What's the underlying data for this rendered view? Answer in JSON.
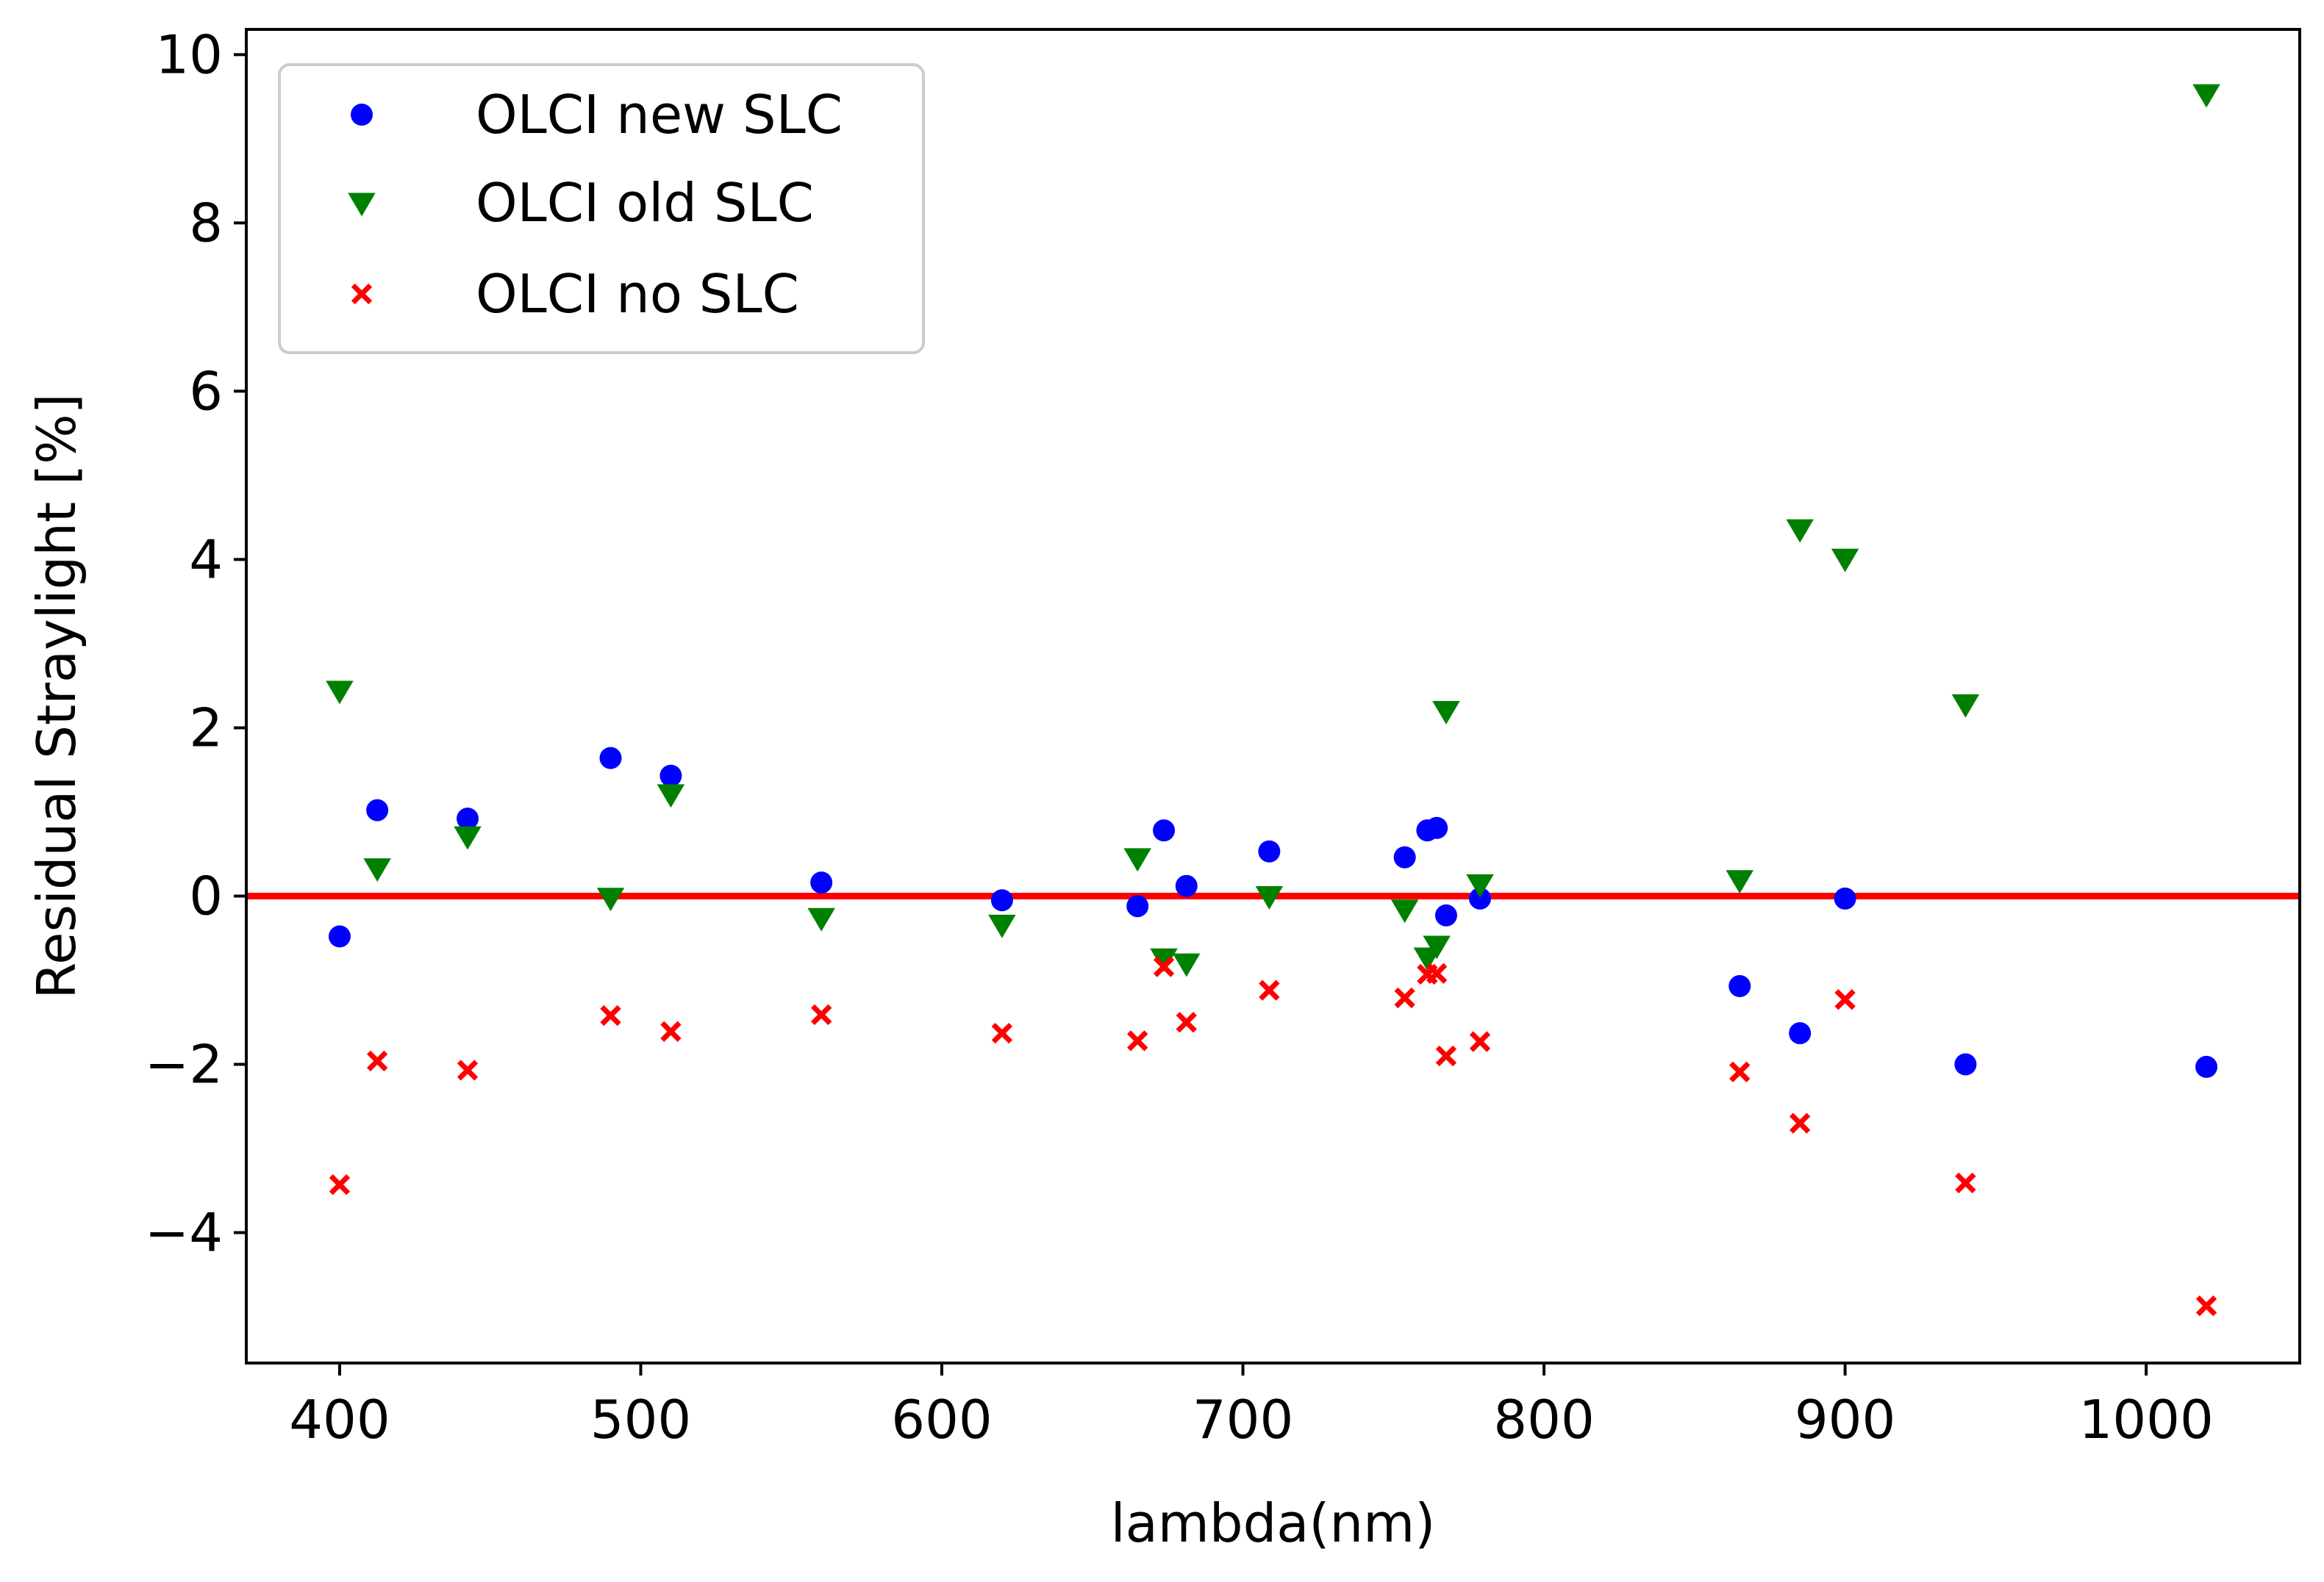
{
  "chart_data": {
    "type": "scatter",
    "xlabel": "lambda(nm)",
    "ylabel": "Residual Straylight [%]",
    "xlim": [
      369,
      1051
    ],
    "ylim": [
      -5.55,
      10.3
    ],
    "xticks": [
      400,
      500,
      600,
      700,
      800,
      900,
      1000
    ],
    "yticks": [
      -4,
      -2,
      0,
      2,
      4,
      6,
      8,
      10
    ],
    "xtick_labels": [
      "400",
      "500",
      "600",
      "700",
      "800",
      "900",
      "1000"
    ],
    "ytick_labels": [
      "−4",
      "−2",
      "0",
      "2",
      "4",
      "6",
      "8",
      "10"
    ],
    "grid": false,
    "legend_position": "top-left",
    "reference_line": {
      "y": 0,
      "color": "#ff0000"
    },
    "series": [
      {
        "name": "OLCI new SLC",
        "marker": "circle",
        "color": "#0000ff",
        "points": [
          [
            400,
            -0.48
          ],
          [
            412.5,
            1.02
          ],
          [
            442.5,
            0.92
          ],
          [
            490,
            1.64
          ],
          [
            510,
            1.43
          ],
          [
            560,
            0.16
          ],
          [
            620,
            -0.05
          ],
          [
            665,
            -0.12
          ],
          [
            673.75,
            0.78
          ],
          [
            681.25,
            0.12
          ],
          [
            708.75,
            0.53
          ],
          [
            753.75,
            0.46
          ],
          [
            761.25,
            0.78
          ],
          [
            764.375,
            0.81
          ],
          [
            767.5,
            -0.23
          ],
          [
            778.75,
            -0.03
          ],
          [
            865,
            -1.07
          ],
          [
            885,
            -1.63
          ],
          [
            900,
            -0.03
          ],
          [
            940,
            -2.0
          ],
          [
            1020,
            -2.03
          ]
        ]
      },
      {
        "name": "OLCI old SLC",
        "marker": "triangle-down",
        "color": "#008000",
        "points": [
          [
            400,
            2.44
          ],
          [
            412.5,
            0.33
          ],
          [
            442.5,
            0.71
          ],
          [
            490,
            -0.02
          ],
          [
            510,
            1.21
          ],
          [
            560,
            -0.26
          ],
          [
            620,
            -0.34
          ],
          [
            665,
            0.45
          ],
          [
            673.75,
            -0.74
          ],
          [
            681.25,
            -0.8
          ],
          [
            708.75,
            0.0
          ],
          [
            753.75,
            -0.16
          ],
          [
            761.25,
            -0.73
          ],
          [
            764.375,
            -0.59
          ],
          [
            767.5,
            2.2
          ],
          [
            778.75,
            0.14
          ],
          [
            865,
            0.19
          ],
          [
            885,
            4.36
          ],
          [
            900,
            4.01
          ],
          [
            940,
            2.28
          ],
          [
            1020,
            9.53
          ]
        ]
      },
      {
        "name": "OLCI no SLC",
        "marker": "x",
        "color": "#ff0000",
        "points": [
          [
            400,
            -3.43
          ],
          [
            412.5,
            -1.96
          ],
          [
            442.5,
            -2.07
          ],
          [
            490,
            -1.42
          ],
          [
            510,
            -1.61
          ],
          [
            560,
            -1.41
          ],
          [
            620,
            -1.63
          ],
          [
            665,
            -1.72
          ],
          [
            673.75,
            -0.84
          ],
          [
            681.25,
            -1.5
          ],
          [
            708.75,
            -1.12
          ],
          [
            753.75,
            -1.21
          ],
          [
            761.25,
            -0.93
          ],
          [
            764.375,
            -0.92
          ],
          [
            767.5,
            -1.9
          ],
          [
            778.75,
            -1.73
          ],
          [
            865,
            -2.09
          ],
          [
            885,
            -2.7
          ],
          [
            900,
            -1.23
          ],
          [
            940,
            -3.41
          ],
          [
            1020,
            -4.87
          ]
        ]
      }
    ]
  }
}
